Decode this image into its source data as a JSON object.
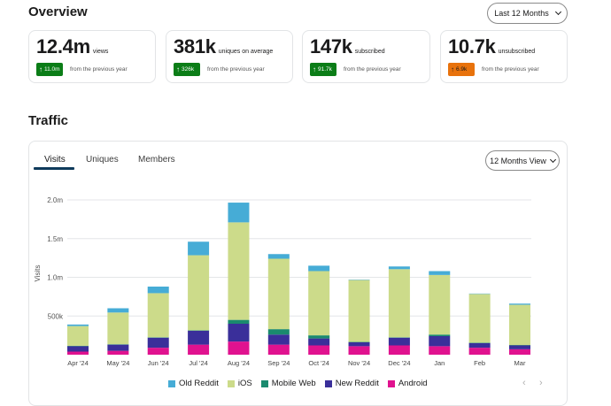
{
  "overview": {
    "title": "Overview",
    "period_label": "Last 12 Months"
  },
  "stats": [
    {
      "value": "12.4m",
      "unit": "views",
      "change": "11.0m",
      "note": "from the previous year",
      "direction": "up",
      "color": "#0b7d17"
    },
    {
      "value": "381k",
      "unit": "uniques on average",
      "change": "326k",
      "note": "from the previous year",
      "direction": "up",
      "color": "#0b7d17"
    },
    {
      "value": "147k",
      "unit": "subscribed",
      "change": "91.7k",
      "note": "from the previous year",
      "direction": "up",
      "color": "#0b7d17"
    },
    {
      "value": "10.7k",
      "unit": "unsubscribed",
      "change": "6.9k",
      "note": "from the previous year",
      "direction": "up",
      "color": "#e8720c"
    }
  ],
  "traffic": {
    "title": "Traffic",
    "tabs": [
      "Visits",
      "Uniques",
      "Members"
    ],
    "active_tab": "Visits",
    "view_label": "12 Months View"
  },
  "chart_data": {
    "type": "bar",
    "stacked": true,
    "ylabel": "Visits",
    "ylim": [
      0,
      2000000
    ],
    "yticks": [
      500000,
      1000000,
      1500000,
      2000000
    ],
    "ytick_labels": [
      "500k",
      "1.0m",
      "1.5m",
      "2.0m"
    ],
    "grid": true,
    "legend_position": "bottom",
    "categories": [
      "Apr '24",
      "May '24",
      "Jun '24",
      "Jul '24",
      "Aug '24",
      "Sep '24",
      "Oct '24",
      "Nov '24",
      "Dec '24",
      "Jan",
      "Feb",
      "Mar"
    ],
    "series": [
      {
        "name": "Android",
        "color": "#e0128f",
        "values": [
          40000,
          50000,
          90000,
          130000,
          170000,
          130000,
          120000,
          110000,
          120000,
          110000,
          90000,
          70000
        ]
      },
      {
        "name": "New Reddit",
        "color": "#3a2f9a",
        "values": [
          70000,
          80000,
          130000,
          180000,
          230000,
          130000,
          90000,
          50000,
          100000,
          130000,
          60000,
          50000
        ]
      },
      {
        "name": "Mobile Web",
        "color": "#1a8a6e",
        "values": [
          5000,
          5000,
          5000,
          5000,
          50000,
          70000,
          40000,
          5000,
          5000,
          20000,
          5000,
          5000
        ]
      },
      {
        "name": "iOS",
        "color": "#ccdb8a",
        "values": [
          255000,
          410000,
          570000,
          970000,
          1260000,
          910000,
          830000,
          800000,
          880000,
          770000,
          630000,
          520000
        ]
      },
      {
        "name": "Old Reddit",
        "color": "#46acd6",
        "values": [
          20000,
          55000,
          85000,
          175000,
          255000,
          60000,
          70000,
          5000,
          35000,
          50000,
          5000,
          15000
        ]
      }
    ],
    "legend_order": [
      "Old Reddit",
      "iOS",
      "Mobile Web",
      "New Reddit",
      "Android"
    ]
  },
  "pager": {
    "prev": "‹",
    "next": "›"
  }
}
